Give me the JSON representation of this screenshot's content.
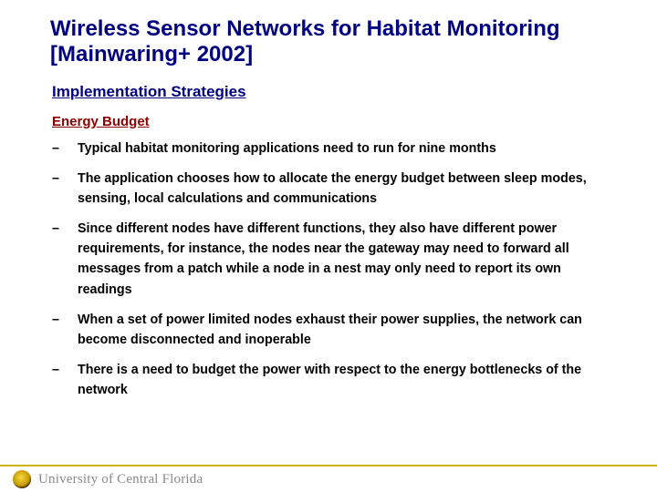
{
  "title_line1": "Wireless Sensor Networks for Habitat Monitoring",
  "title_line2": "[Mainwaring+ 2002]",
  "section_heading": "Implementation Strategies",
  "subheading": "Energy Budget",
  "bullets": [
    "Typical habitat monitoring applications need to run for nine months",
    "The application chooses how to allocate the energy budget between sleep modes, sensing, local calculations and communications",
    "Since different nodes have different functions, they also have different power requirements, for instance, the nodes near the gateway may need to forward all messages from a patch while a node in a nest may only need to report its own readings",
    "When a set of power limited nodes exhaust their power supplies, the network can become disconnected and inoperable",
    "There is a need to budget the power with respect to the energy bottlenecks of the network"
  ],
  "footer_text": "University of Central Florida",
  "colors": {
    "title": "#000080",
    "section": "#000080",
    "subheading": "#8b0000",
    "body": "#000000",
    "footer_rule": "#d0b000",
    "footer_text": "#8a8a8a",
    "background": "#ffffff"
  },
  "fonts": {
    "title_family": "Comic Sans MS",
    "title_size_pt": 24,
    "section_size_pt": 17,
    "sub_size_pt": 15,
    "body_size_pt": 14,
    "footer_size_pt": 15
  }
}
